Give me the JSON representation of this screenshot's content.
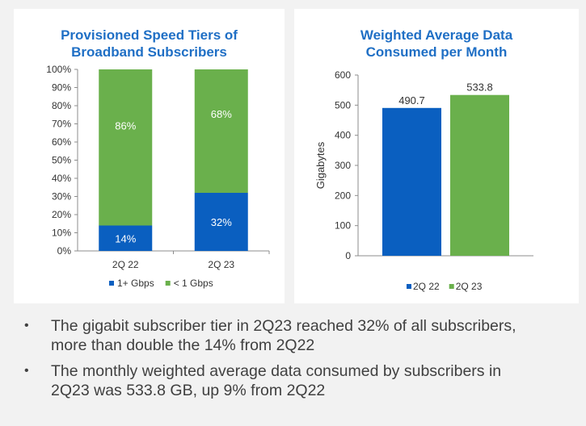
{
  "chart_data": [
    {
      "type": "bar",
      "stacked": true,
      "title": "Provisioned Speed Tiers of Broadband Subscribers",
      "categories": [
        "2Q 22",
        "2Q 23"
      ],
      "series": [
        {
          "name": "1+ Gbps",
          "values": [
            14,
            32
          ],
          "labels": [
            "14%",
            "32%"
          ],
          "color": "#0a5fc0"
        },
        {
          "name": "< 1 Gbps",
          "values": [
            86,
            68
          ],
          "labels": [
            "86%",
            "68%"
          ],
          "color": "#6ab04c"
        }
      ],
      "ylim": [
        0,
        100
      ],
      "yticks": [
        "0%",
        "10%",
        "20%",
        "30%",
        "40%",
        "50%",
        "60%",
        "70%",
        "80%",
        "90%",
        "100%"
      ],
      "ylabel": "",
      "legend": "bottom"
    },
    {
      "type": "bar",
      "title": "Weighted Average Data Consumed per Month",
      "categories": [
        "2Q 22",
        "2Q 23"
      ],
      "values": [
        490.7,
        533.8
      ],
      "labels": [
        "490.7",
        "533.8"
      ],
      "colors": [
        "#0a5fc0",
        "#6ab04c"
      ],
      "ylim": [
        0,
        600
      ],
      "yticks": [
        "0",
        "100",
        "200",
        "300",
        "400",
        "500",
        "600"
      ],
      "ylabel": "Gigabytes",
      "legend": "bottom"
    }
  ],
  "titles": {
    "left": [
      "Provisioned Speed Tiers of",
      "Broadband Subscribers"
    ],
    "right": [
      "Weighted Average Data",
      "Consumed per Month"
    ]
  },
  "bullets": [
    [
      "The gigabit subscriber tier in 2Q23 reached 32% of all subscribers,",
      "more than double the 14% from 2Q22"
    ],
    [
      "The monthly weighted average data consumed by subscribers in",
      "2Q23 was 533.8 GB, up 9% from 2Q22"
    ]
  ],
  "bullet_symbol": "•"
}
